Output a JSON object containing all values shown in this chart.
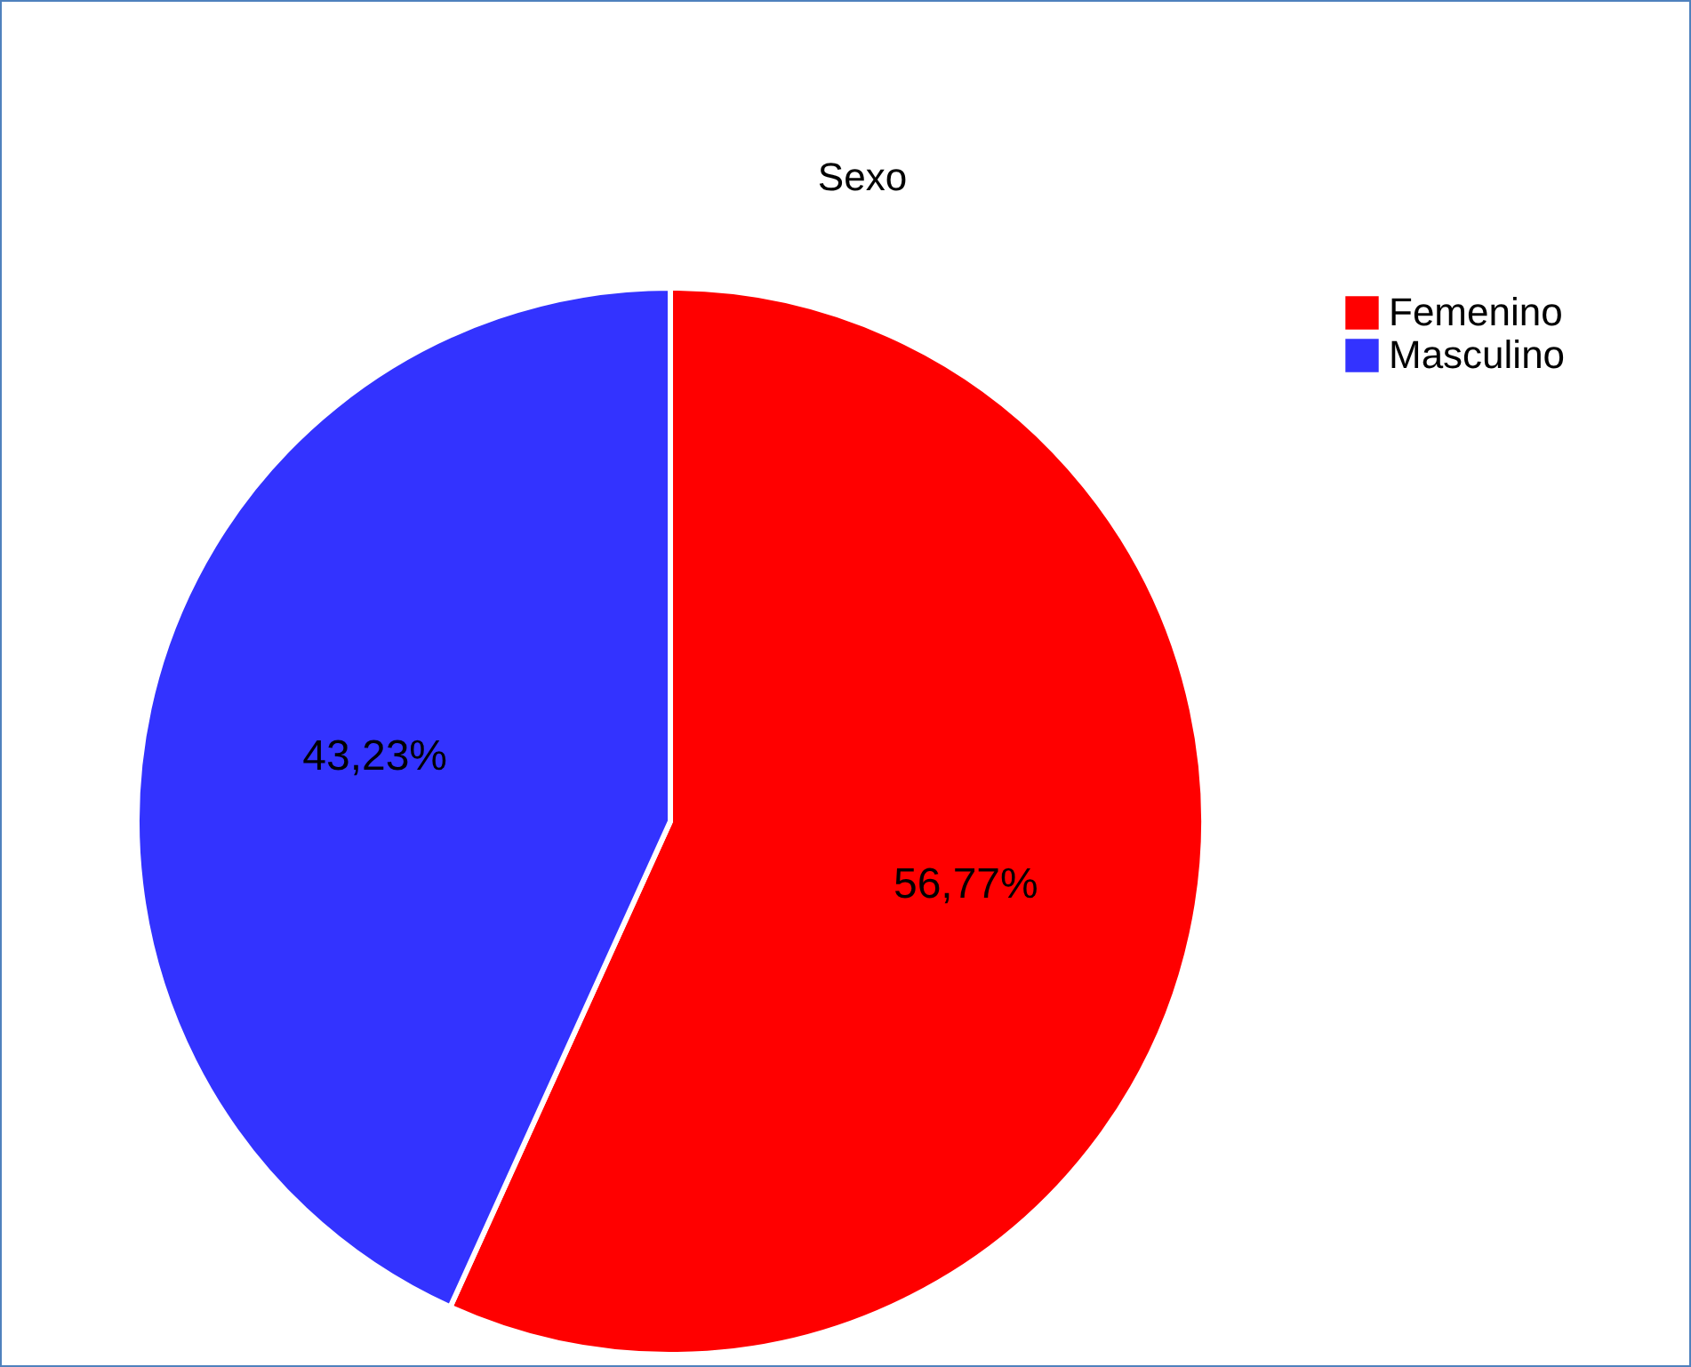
{
  "chart_data": {
    "type": "pie",
    "title": "Sexo",
    "categories": [
      "Femenino",
      "Masculino"
    ],
    "values": [
      56.77,
      43.23
    ],
    "colors": [
      "#ff0000",
      "#3333ff"
    ],
    "value_labels": [
      "56,77%",
      "43,23%"
    ],
    "legend": "top right"
  }
}
